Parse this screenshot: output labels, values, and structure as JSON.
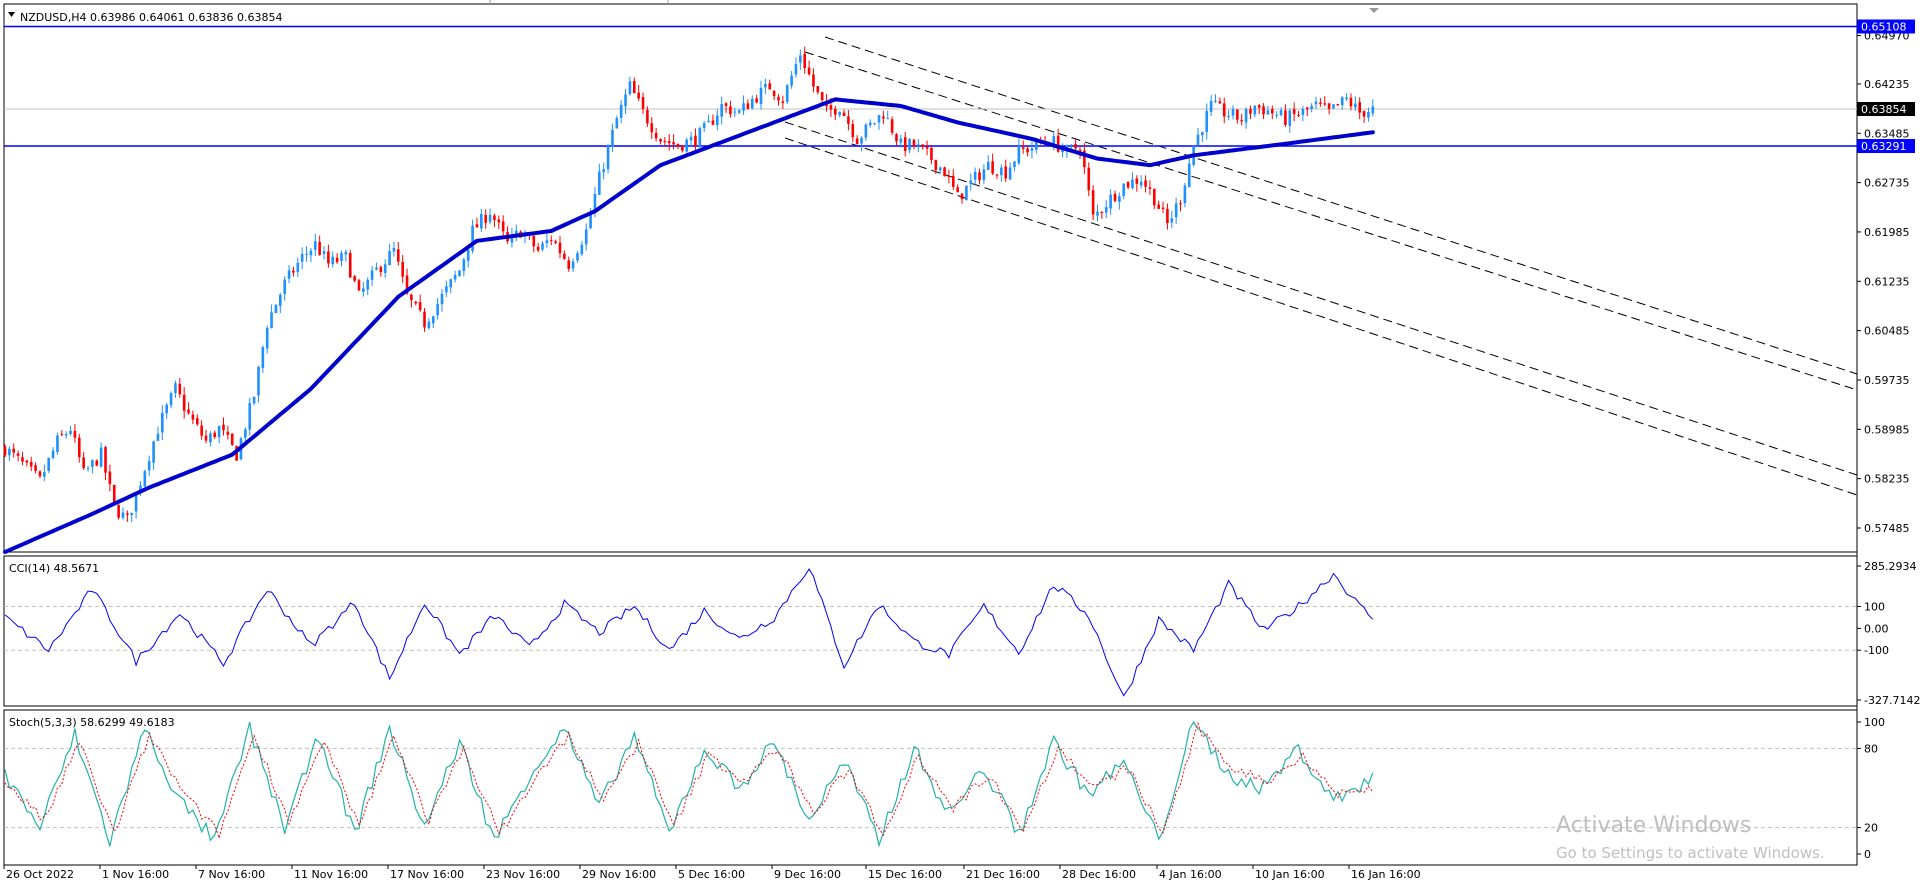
{
  "symbol_header": "NZDUSD,H4  0.63986 0.64061 0.63836 0.63854",
  "price_axis_ticks": [
    "0.64970",
    "0.64235",
    "0.63485",
    "0.62735",
    "0.61985",
    "0.61235",
    "0.60485",
    "0.59735",
    "0.58985",
    "0.58235",
    "0.57485"
  ],
  "price_labels": {
    "resistance": "0.65108",
    "current": "0.63854",
    "support": "0.63291"
  },
  "colors": {
    "bull_candle": "#1e90ff",
    "bear_candle": "#ff0000",
    "ma_line": "#0000cd",
    "hline": "#0000ff",
    "cci_line": "#0000ff",
    "stoch_main": "#20b2aa",
    "stoch_signal": "#ff0000",
    "grid": "#c0c0c0"
  },
  "cci": {
    "label": "CCI(14) 48.5671",
    "ticks": [
      "285.2934",
      "100",
      "0.00",
      "-100",
      "-327.7142"
    ]
  },
  "stoch": {
    "label": "Stoch(5,3,3) 58.6299 49.6183",
    "ticks": [
      "100",
      "80",
      "20",
      "0"
    ]
  },
  "time_axis": [
    "26 Oct 2022",
    "1 Nov 16:00",
    "7 Nov 16:00",
    "11 Nov 16:00",
    "17 Nov 16:00",
    "23 Nov 16:00",
    "29 Nov 16:00",
    "5 Dec 16:00",
    "9 Dec 16:00",
    "15 Dec 16:00",
    "21 Dec 16:00",
    "28 Dec 16:00",
    "4 Jan 16:00",
    "10 Jan 16:00",
    "16 Jan 16:00"
  ],
  "watermark": {
    "line1": "Activate Windows",
    "line2": "Go to Settings to activate Windows."
  },
  "chart_data": {
    "type": "candlestick",
    "symbol": "NZDUSD",
    "timeframe": "H4",
    "ylim": [
      0.5712,
      0.6545
    ],
    "horizontal_levels": [
      0.65108,
      0.63291,
      0.63854
    ],
    "close_path": [
      [
        0,
        0.587
      ],
      [
        4,
        0.5845
      ],
      [
        8,
        0.582
      ],
      [
        12,
        0.588
      ],
      [
        15,
        0.59
      ],
      [
        18,
        0.583
      ],
      [
        22,
        0.586
      ],
      [
        25,
        0.578
      ],
      [
        28,
        0.576
      ],
      [
        31,
        0.582
      ],
      [
        35,
        0.59
      ],
      [
        39,
        0.596
      ],
      [
        42,
        0.592
      ],
      [
        46,
        0.588
      ],
      [
        49,
        0.59
      ],
      [
        53,
        0.586
      ],
      [
        57,
        0.595
      ],
      [
        60,
        0.606
      ],
      [
        64,
        0.612
      ],
      [
        68,
        0.616
      ],
      [
        71,
        0.618
      ],
      [
        74,
        0.615
      ],
      [
        78,
        0.616
      ],
      [
        81,
        0.61
      ],
      [
        85,
        0.614
      ],
      [
        89,
        0.617
      ],
      [
        92,
        0.61
      ],
      [
        96,
        0.606
      ],
      [
        100,
        0.61
      ],
      [
        104,
        0.614
      ],
      [
        107,
        0.62
      ],
      [
        111,
        0.623
      ],
      [
        115,
        0.618
      ],
      [
        118,
        0.62
      ],
      [
        122,
        0.617
      ],
      [
        125,
        0.619
      ],
      [
        129,
        0.615
      ],
      [
        133,
        0.62
      ],
      [
        136,
        0.628
      ],
      [
        140,
        0.637
      ],
      [
        143,
        0.642
      ],
      [
        146,
        0.638
      ],
      [
        150,
        0.634
      ],
      [
        154,
        0.633
      ],
      [
        158,
        0.634
      ],
      [
        161,
        0.636
      ],
      [
        164,
        0.639
      ],
      [
        168,
        0.638
      ],
      [
        171,
        0.64
      ],
      [
        175,
        0.642
      ],
      [
        178,
        0.64
      ],
      [
        182,
        0.647
      ],
      [
        185,
        0.642
      ],
      [
        188,
        0.638
      ],
      [
        191,
        0.639
      ],
      [
        195,
        0.634
      ],
      [
        198,
        0.636
      ],
      [
        201,
        0.638
      ],
      [
        205,
        0.633
      ],
      [
        208,
        0.633
      ],
      [
        212,
        0.631
      ],
      [
        215,
        0.629
      ],
      [
        218,
        0.625
      ],
      [
        222,
        0.628
      ],
      [
        225,
        0.63
      ],
      [
        229,
        0.629
      ],
      [
        232,
        0.632
      ],
      [
        236,
        0.633
      ],
      [
        239,
        0.634
      ],
      [
        243,
        0.632
      ],
      [
        246,
        0.633
      ],
      [
        249,
        0.622
      ],
      [
        253,
        0.625
      ],
      [
        256,
        0.627
      ],
      [
        260,
        0.628
      ],
      [
        263,
        0.625
      ],
      [
        266,
        0.621
      ],
      [
        269,
        0.625
      ],
      [
        272,
        0.633
      ],
      [
        276,
        0.639
      ],
      [
        279,
        0.638
      ],
      [
        283,
        0.637
      ],
      [
        286,
        0.639
      ],
      [
        290,
        0.638
      ],
      [
        293,
        0.637
      ],
      [
        297,
        0.638
      ],
      [
        300,
        0.639
      ],
      [
        303,
        0.638
      ],
      [
        307,
        0.64
      ],
      [
        310,
        0.638
      ],
      [
        313,
        0.6385
      ]
    ],
    "moving_average": [
      [
        0,
        0.5712
      ],
      [
        20,
        0.577
      ],
      [
        33,
        0.581
      ],
      [
        52,
        0.586
      ],
      [
        70,
        0.596
      ],
      [
        90,
        0.61
      ],
      [
        108,
        0.6185
      ],
      [
        125,
        0.62
      ],
      [
        135,
        0.623
      ],
      [
        150,
        0.63
      ],
      [
        170,
        0.635
      ],
      [
        182,
        0.638
      ],
      [
        190,
        0.64
      ],
      [
        205,
        0.639
      ],
      [
        218,
        0.6365
      ],
      [
        235,
        0.634
      ],
      [
        250,
        0.631
      ],
      [
        262,
        0.63
      ],
      [
        272,
        0.6315
      ],
      [
        290,
        0.633
      ],
      [
        313,
        0.635
      ]
    ],
    "cci_path": [
      [
        0,
        50
      ],
      [
        10,
        -100
      ],
      [
        20,
        180
      ],
      [
        30,
        -150
      ],
      [
        40,
        70
      ],
      [
        50,
        -160
      ],
      [
        60,
        180
      ],
      [
        70,
        -80
      ],
      [
        80,
        120
      ],
      [
        88,
        -230
      ],
      [
        96,
        120
      ],
      [
        104,
        -120
      ],
      [
        112,
        60
      ],
      [
        120,
        -90
      ],
      [
        128,
        110
      ],
      [
        136,
        -20
      ],
      [
        144,
        100
      ],
      [
        152,
        -100
      ],
      [
        160,
        80
      ],
      [
        168,
        -50
      ],
      [
        176,
        50
      ],
      [
        184,
        285
      ],
      [
        192,
        -170
      ],
      [
        200,
        110
      ],
      [
        208,
        -60
      ],
      [
        216,
        -120
      ],
      [
        224,
        100
      ],
      [
        232,
        -110
      ],
      [
        240,
        200
      ],
      [
        248,
        60
      ],
      [
        256,
        -320
      ],
      [
        264,
        40
      ],
      [
        272,
        -100
      ],
      [
        280,
        200
      ],
      [
        288,
        -10
      ],
      [
        296,
        100
      ],
      [
        304,
        250
      ],
      [
        310,
        100
      ],
      [
        313,
        48.5671
      ]
    ],
    "stoch_main_path": [
      [
        0,
        60
      ],
      [
        8,
        20
      ],
      [
        16,
        90
      ],
      [
        24,
        10
      ],
      [
        32,
        95
      ],
      [
        40,
        40
      ],
      [
        48,
        10
      ],
      [
        56,
        95
      ],
      [
        64,
        20
      ],
      [
        72,
        90
      ],
      [
        80,
        15
      ],
      [
        88,
        95
      ],
      [
        96,
        20
      ],
      [
        104,
        85
      ],
      [
        112,
        10
      ],
      [
        120,
        60
      ],
      [
        128,
        95
      ],
      [
        136,
        35
      ],
      [
        144,
        90
      ],
      [
        152,
        15
      ],
      [
        160,
        80
      ],
      [
        168,
        50
      ],
      [
        176,
        85
      ],
      [
        184,
        25
      ],
      [
        192,
        70
      ],
      [
        200,
        10
      ],
      [
        208,
        80
      ],
      [
        216,
        30
      ],
      [
        224,
        65
      ],
      [
        232,
        15
      ],
      [
        240,
        85
      ],
      [
        248,
        45
      ],
      [
        256,
        70
      ],
      [
        264,
        10
      ],
      [
        272,
        100
      ],
      [
        280,
        60
      ],
      [
        288,
        50
      ],
      [
        296,
        80
      ],
      [
        304,
        40
      ],
      [
        313,
        58.6299
      ]
    ],
    "stoch_signal_path": [
      [
        0,
        55
      ],
      [
        9,
        25
      ],
      [
        17,
        85
      ],
      [
        25,
        15
      ],
      [
        33,
        90
      ],
      [
        41,
        45
      ],
      [
        49,
        15
      ],
      [
        57,
        90
      ],
      [
        65,
        25
      ],
      [
        73,
        85
      ],
      [
        81,
        20
      ],
      [
        89,
        90
      ],
      [
        97,
        25
      ],
      [
        105,
        80
      ],
      [
        113,
        15
      ],
      [
        121,
        55
      ],
      [
        129,
        90
      ],
      [
        137,
        40
      ],
      [
        145,
        85
      ],
      [
        153,
        20
      ],
      [
        161,
        75
      ],
      [
        169,
        55
      ],
      [
        177,
        80
      ],
      [
        185,
        30
      ],
      [
        193,
        65
      ],
      [
        201,
        15
      ],
      [
        209,
        75
      ],
      [
        217,
        35
      ],
      [
        225,
        60
      ],
      [
        233,
        20
      ],
      [
        241,
        80
      ],
      [
        249,
        50
      ],
      [
        257,
        65
      ],
      [
        265,
        15
      ],
      [
        273,
        95
      ],
      [
        281,
        65
      ],
      [
        289,
        55
      ],
      [
        297,
        75
      ],
      [
        305,
        45
      ],
      [
        313,
        49.6183
      ]
    ]
  }
}
